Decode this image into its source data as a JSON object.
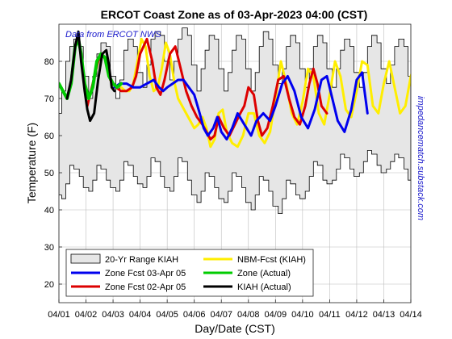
{
  "chart_data": {
    "type": "line",
    "title": "ERCOT Coast Zone as of 03-Apr-2023 04:00 (CST)",
    "xlabel": "Day/Date (CST)",
    "ylabel": "Temperature (F)",
    "xlim": [
      0,
      13
    ],
    "ylim": [
      15,
      90
    ],
    "x_ticks": [
      0,
      1,
      2,
      3,
      4,
      5,
      6,
      7,
      8,
      9,
      10,
      11,
      12,
      13
    ],
    "x_tick_labels": [
      "04/01",
      "04/02",
      "04/03",
      "04/04",
      "04/05",
      "04/06",
      "04/07",
      "04/08",
      "04/09",
      "04/10",
      "04/11",
      "04/12",
      "04/13",
      "04/14"
    ],
    "y_ticks": [
      20,
      30,
      40,
      50,
      60,
      70,
      80
    ],
    "grid": true,
    "legend_position": "bottom-left",
    "annotations": {
      "source": "Data from ERCOT NWS",
      "side": "impedancematch.substack.com"
    },
    "range_band": {
      "name": "20-Yr Range KIAH",
      "color": "#e6e6e6",
      "x": [
        0,
        0.1,
        0.25,
        0.4,
        0.55,
        0.75,
        0.9,
        1.1,
        1.25,
        1.4,
        1.55,
        1.75,
        1.9,
        2.1,
        2.25,
        2.4,
        2.55,
        2.75,
        2.9,
        3.1,
        3.25,
        3.4,
        3.55,
        3.75,
        3.9,
        4.1,
        4.25,
        4.4,
        4.55,
        4.75,
        4.9,
        5.1,
        5.25,
        5.4,
        5.55,
        5.75,
        5.9,
        6.1,
        6.25,
        6.4,
        6.55,
        6.75,
        6.9,
        7.1,
        7.25,
        7.4,
        7.55,
        7.75,
        7.9,
        8.1,
        8.25,
        8.4,
        8.55,
        8.75,
        8.9,
        9.1,
        9.25,
        9.4,
        9.55,
        9.75,
        9.9,
        10.1,
        10.25,
        10.4,
        10.55,
        10.75,
        10.9,
        11.1,
        11.25,
        11.4,
        11.55,
        11.75,
        11.9,
        12.1,
        12.25,
        12.4,
        12.55,
        12.75,
        12.9,
        13
      ],
      "upper": [
        66,
        72,
        80,
        84,
        86,
        84,
        76,
        70,
        76,
        82,
        85,
        84,
        76,
        70,
        75,
        83,
        86,
        84,
        77,
        73,
        79,
        86,
        88,
        87,
        80,
        75,
        80,
        86,
        89,
        87,
        79,
        72,
        78,
        83,
        87,
        86,
        78,
        72,
        77,
        83,
        87,
        86,
        78,
        72,
        77,
        84,
        88,
        86,
        79,
        74,
        78,
        84,
        87,
        85,
        78,
        73,
        78,
        84,
        87,
        85,
        78,
        73,
        78,
        83,
        86,
        84,
        77,
        73,
        77,
        84,
        87,
        85,
        78,
        74,
        79,
        84,
        86,
        84,
        76,
        74
      ],
      "lower": [
        50,
        44,
        43,
        47,
        52,
        51,
        49,
        46,
        45,
        48,
        52,
        51,
        48,
        46,
        45,
        48,
        53,
        52,
        49,
        47,
        46,
        49,
        54,
        53,
        49,
        46,
        45,
        49,
        54,
        53,
        48,
        44,
        42,
        45,
        50,
        49,
        46,
        43,
        42,
        45,
        50,
        49,
        46,
        42,
        40,
        44,
        49,
        48,
        45,
        41,
        39,
        43,
        48,
        47,
        44,
        43,
        45,
        49,
        53,
        52,
        48,
        47,
        48,
        51,
        55,
        54,
        51,
        49,
        50,
        53,
        56,
        55,
        52,
        50,
        51,
        53,
        55,
        54,
        51,
        48
      ]
    },
    "series": [
      {
        "name": "Zone Fcst 03-Apr 05",
        "color": "#0000ee",
        "x": [
          2.05,
          2.25,
          2.5,
          2.75,
          3,
          3.25,
          3.5,
          3.7,
          3.85,
          4,
          4.2,
          4.4,
          4.6,
          4.8,
          5,
          5.2,
          5.35,
          5.5,
          5.7,
          5.85,
          6,
          6.2,
          6.4,
          6.6,
          6.85,
          7.1,
          7.3,
          7.55,
          7.8,
          8,
          8.25,
          8.45,
          8.7,
          8.95,
          9.2,
          9.45,
          9.7,
          9.9,
          10.1,
          10.3,
          10.55,
          10.8,
          11,
          11.2,
          11.4
        ],
        "y": [
          73,
          74,
          74,
          73,
          73,
          74,
          75,
          73,
          72,
          73,
          74,
          75,
          75,
          73,
          71,
          66,
          62,
          60,
          62,
          65,
          61,
          59,
          62,
          66,
          63,
          60,
          64,
          66,
          64,
          68,
          74,
          76,
          72,
          65,
          62,
          67,
          75,
          76,
          70,
          64,
          61,
          67,
          75,
          77,
          66
        ]
      },
      {
        "name": "Zone Fcst 02-Apr 05",
        "color": "#dd0000",
        "x": [
          1.05,
          1.25,
          1.45,
          1.6,
          1.75,
          1.9,
          2.1,
          2.3,
          2.5,
          2.7,
          2.85,
          3,
          3.25,
          3.45,
          3.6,
          3.75,
          3.9,
          4.1,
          4.3,
          4.5,
          4.7,
          4.9,
          5.1,
          5.3,
          5.45,
          5.6,
          5.75,
          5.9,
          6.1,
          6.3,
          6.5,
          6.7,
          6.85,
          7,
          7.2,
          7.35,
          7.5,
          7.7,
          7.9,
          8.1,
          8.3,
          8.5,
          8.7,
          8.9,
          9.1,
          9.25,
          9.4,
          9.55,
          9.7,
          9.9
        ],
        "y": [
          68,
          74,
          80,
          82,
          80,
          75,
          73,
          72,
          72,
          73,
          76,
          82,
          86,
          80,
          73,
          71,
          75,
          82,
          84,
          78,
          72,
          68,
          65,
          63,
          61,
          59,
          60,
          65,
          62,
          60,
          63,
          66,
          68,
          73,
          71,
          64,
          60,
          62,
          68,
          75,
          76,
          70,
          65,
          63,
          68,
          74,
          78,
          74,
          68,
          66
        ]
      },
      {
        "name": "Zone (Actual)",
        "color": "#00cc00",
        "x": [
          0,
          0.15,
          0.3,
          0.45,
          0.6,
          0.72,
          0.82,
          0.95,
          1.1,
          1.25,
          1.4,
          1.55,
          1.7,
          1.85,
          2,
          2.15,
          2.3
        ],
        "y": [
          74,
          72,
          70,
          74,
          84,
          86,
          82,
          74,
          70,
          73,
          80,
          82,
          81,
          76,
          74,
          73,
          74
        ]
      },
      {
        "name": "KIAH (Actual)",
        "color": "#000000",
        "x": [
          0.3,
          0.45,
          0.6,
          0.72,
          0.82,
          0.95,
          1.05,
          1.15,
          1.3,
          1.45,
          1.6,
          1.75,
          1.85,
          1.95,
          2.05
        ],
        "y": [
          70,
          75,
          84,
          88,
          80,
          72,
          67,
          64,
          66,
          75,
          82,
          83,
          79,
          73,
          72
        ]
      },
      {
        "name": "NBM-Fcst (KIAH)",
        "color": "#ffee00",
        "x": [
          2.3,
          2.45,
          2.6,
          2.75,
          2.9,
          3.05,
          3.2,
          3.35,
          3.5,
          3.65,
          3.8,
          3.95,
          4.1,
          4.25,
          4.4,
          4.55,
          4.7,
          4.85,
          5,
          5.15,
          5.3,
          5.45,
          5.6,
          5.75,
          5.9,
          6.05,
          6.2,
          6.4,
          6.6,
          6.8,
          7,
          7.2,
          7.4,
          7.6,
          7.8,
          8,
          8.2,
          8.4,
          8.6,
          8.8,
          9,
          9.2,
          9.4,
          9.6,
          9.8,
          10,
          10.2,
          10.4,
          10.6,
          10.8,
          11,
          11.2,
          11.4,
          11.6,
          11.8,
          12,
          12.2,
          12.4,
          12.6,
          12.8,
          13,
          13.2,
          13.35
        ],
        "y": [
          73,
          72,
          72,
          74,
          80,
          86,
          84,
          76,
          72,
          73,
          78,
          85,
          82,
          75,
          70,
          68,
          66,
          64,
          62,
          63,
          65,
          62,
          57,
          59,
          66,
          67,
          61,
          58,
          57,
          60,
          66,
          66,
          60,
          58,
          61,
          70,
          80,
          74,
          66,
          63,
          69,
          78,
          76,
          66,
          63,
          71,
          80,
          76,
          67,
          65,
          72,
          80,
          79,
          68,
          66,
          74,
          80,
          73,
          66,
          68,
          76,
          80,
          79
        ]
      }
    ]
  }
}
